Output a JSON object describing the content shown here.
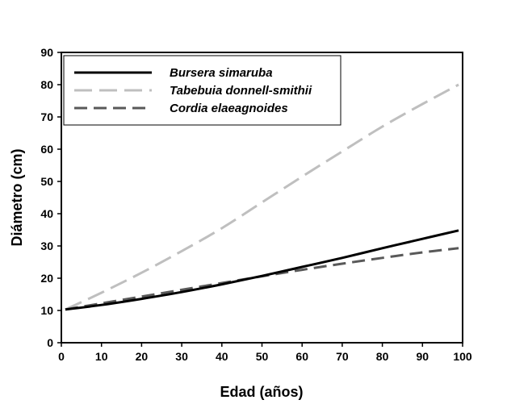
{
  "chart_data": {
    "type": "line",
    "xlabel": "Edad (años)",
    "ylabel": "Diámetro (cm)",
    "xlim": [
      0,
      100
    ],
    "ylim": [
      0,
      90
    ],
    "xticks": [
      "0",
      "10",
      "20",
      "30",
      "40",
      "50",
      "60",
      "70",
      "80",
      "90",
      "100"
    ],
    "yticks": [
      "0",
      "10",
      "20",
      "30",
      "40",
      "50",
      "60",
      "70",
      "80",
      "90"
    ],
    "grid": false,
    "legend_position": "top-left",
    "x": [
      1,
      10,
      20,
      30,
      40,
      50,
      60,
      70,
      80,
      90,
      99
    ],
    "series": [
      {
        "name": "Bursera simaruba",
        "values": [
          10.3,
          11.7,
          13.6,
          15.7,
          18.1,
          20.7,
          23.5,
          26.3,
          29.3,
          32.2,
          34.8
        ],
        "color": "#000000",
        "dash": "solid"
      },
      {
        "name": "Tabebuia donnell-smithii",
        "values": [
          10.3,
          15.5,
          21.7,
          28.4,
          35.5,
          43.5,
          51.5,
          59.3,
          67.0,
          74.0,
          80.0
        ],
        "color": "#bfbfbf",
        "dash": "long-dash"
      },
      {
        "name": "Cordia elaeagnoides",
        "values": [
          10.3,
          12.2,
          14.3,
          16.4,
          18.5,
          20.6,
          22.6,
          24.5,
          26.3,
          28.0,
          29.3
        ],
        "color": "#595959",
        "dash": "dash"
      }
    ]
  }
}
